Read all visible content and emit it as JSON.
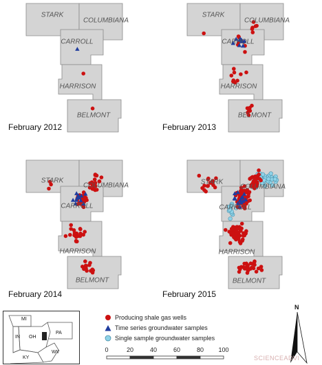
{
  "panels": [
    {
      "id": "2012",
      "date": "February 2012",
      "wells": 2,
      "timeseries": 1,
      "single": 0
    },
    {
      "id": "2013",
      "date": "February 2013",
      "wells": 30,
      "timeseries": 10,
      "single": 0
    },
    {
      "id": "2014",
      "date": "February 2014",
      "wells": 85,
      "timeseries": 12,
      "single": 0
    },
    {
      "id": "2015",
      "date": "February 2015",
      "wells": 190,
      "timeseries": 14,
      "single": 45
    }
  ],
  "counties": {
    "stark": "STARK",
    "columbiana": "COLUMBIANA",
    "carroll": "CARROLL",
    "harrison": "HARRISON",
    "belmont": "BELMONT"
  },
  "legend": {
    "wells": "Producing shale gas wells",
    "timeseries": "Time series groundwater samples",
    "single": "Single sample groundwater samples"
  },
  "colors": {
    "wells": "#cc1111",
    "timeseries": "#1f3c9e",
    "single": "#8fd3e8",
    "county_fill": "#d4d4d4"
  },
  "inset_states": [
    "MI",
    "IN",
    "OH",
    "PA",
    "KY",
    "WV"
  ],
  "scale": {
    "ticks": [
      "0",
      "20",
      "40",
      "60",
      "80",
      "100"
    ]
  },
  "north_label": "N",
  "watermark": "SCIENCEADVI"
}
